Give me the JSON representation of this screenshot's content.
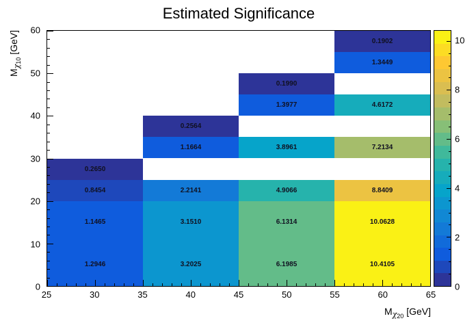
{
  "title": "Estimated Significance",
  "axes": {
    "x": {
      "title_prefix": "M",
      "title_sub_greek": "χ",
      "title_sub_num": "20",
      "title_suffix": " [GeV]",
      "min": 25,
      "max": 65,
      "ticks": [
        25,
        30,
        35,
        40,
        45,
        50,
        55,
        60,
        65
      ],
      "minor_step": 1
    },
    "y": {
      "title_prefix": "M",
      "title_sub_greek": "χ",
      "title_sub_num": "10",
      "title_suffix": " [GeV]",
      "min": 0,
      "max": 60,
      "ticks": [
        0,
        10,
        20,
        30,
        40,
        50,
        60
      ],
      "minor_step": 2
    },
    "z": {
      "min": 0,
      "max": 10.4105,
      "ticks": [
        0,
        2,
        4,
        6,
        8,
        10
      ],
      "minor_step": 0.5
    }
  },
  "chart_data": {
    "type": "heatmap",
    "title": "Estimated Significance",
    "xlabel": "M_chi20 [GeV]",
    "ylabel": "M_chi10 [GeV]",
    "xlim": [
      25,
      65
    ],
    "ylim": [
      0,
      60
    ],
    "zlim": [
      0,
      10.4105
    ],
    "x_bin_edges": [
      25,
      35,
      45,
      55,
      65
    ],
    "y_bin_edges": [
      0,
      10,
      20,
      25,
      30,
      35,
      40,
      45,
      50,
      55,
      60
    ],
    "cells": [
      {
        "x1": 25,
        "x2": 35,
        "y1": 0,
        "y2": 10,
        "value": 1.2946,
        "label": "1.2946",
        "color": "#0f5cdd"
      },
      {
        "x1": 25,
        "x2": 35,
        "y1": 10,
        "y2": 20,
        "value": 1.1465,
        "label": "1.1465",
        "color": "#0f5cdd"
      },
      {
        "x1": 25,
        "x2": 35,
        "y1": 20,
        "y2": 25,
        "value": 0.8454,
        "label": "0.8454",
        "color": "#1e48bb"
      },
      {
        "x1": 25,
        "x2": 35,
        "y1": 25,
        "y2": 30,
        "value": 0.265,
        "label": "0.2650",
        "color": "#2d3498"
      },
      {
        "x1": 35,
        "x2": 45,
        "y1": 0,
        "y2": 10,
        "value": 3.2025,
        "label": "3.2025",
        "color": "#0c96cf"
      },
      {
        "x1": 35,
        "x2": 45,
        "y1": 10,
        "y2": 20,
        "value": 3.151,
        "label": "3.1510",
        "color": "#0c96cf"
      },
      {
        "x1": 35,
        "x2": 45,
        "y1": 20,
        "y2": 25,
        "value": 2.2141,
        "label": "2.2141",
        "color": "#137ad7"
      },
      {
        "x1": 35,
        "x2": 45,
        "y1": 30,
        "y2": 35,
        "value": 1.1664,
        "label": "1.1664",
        "color": "#0f5cdd"
      },
      {
        "x1": 35,
        "x2": 45,
        "y1": 35,
        "y2": 40,
        "value": 0.2564,
        "label": "0.2564",
        "color": "#2d3498"
      },
      {
        "x1": 45,
        "x2": 55,
        "y1": 0,
        "y2": 10,
        "value": 6.1985,
        "label": "6.1985",
        "color": "#63bc89"
      },
      {
        "x1": 45,
        "x2": 55,
        "y1": 10,
        "y2": 20,
        "value": 6.1314,
        "label": "6.1314",
        "color": "#63bc89"
      },
      {
        "x1": 45,
        "x2": 55,
        "y1": 20,
        "y2": 25,
        "value": 4.9066,
        "label": "4.9066",
        "color": "#26b3ac"
      },
      {
        "x1": 45,
        "x2": 55,
        "y1": 30,
        "y2": 35,
        "value": 3.8961,
        "label": "3.8961",
        "color": "#06a4ca"
      },
      {
        "x1": 45,
        "x2": 55,
        "y1": 40,
        "y2": 45,
        "value": 1.3977,
        "label": "1.3977",
        "color": "#0f5cdd"
      },
      {
        "x1": 45,
        "x2": 55,
        "y1": 45,
        "y2": 50,
        "value": 0.199,
        "label": "0.1990",
        "color": "#2d3498"
      },
      {
        "x1": 55,
        "x2": 65,
        "y1": 0,
        "y2": 10,
        "value": 10.4105,
        "label": "10.4105",
        "color": "#faf115"
      },
      {
        "x1": 55,
        "x2": 65,
        "y1": 10,
        "y2": 20,
        "value": 10.0628,
        "label": "10.0628",
        "color": "#faf115"
      },
      {
        "x1": 55,
        "x2": 65,
        "y1": 20,
        "y2": 25,
        "value": 8.8409,
        "label": "8.8409",
        "color": "#ecc342"
      },
      {
        "x1": 55,
        "x2": 65,
        "y1": 30,
        "y2": 35,
        "value": 7.2134,
        "label": "7.2134",
        "color": "#a5bd6b"
      },
      {
        "x1": 55,
        "x2": 65,
        "y1": 40,
        "y2": 45,
        "value": 4.6172,
        "label": "4.6172",
        "color": "#16acbb"
      },
      {
        "x1": 55,
        "x2": 65,
        "y1": 50,
        "y2": 55,
        "value": 1.3449,
        "label": "1.3449",
        "color": "#0f5cdd"
      },
      {
        "x1": 55,
        "x2": 65,
        "y1": 55,
        "y2": 60,
        "value": 0.1902,
        "label": "0.1902",
        "color": "#2d3498"
      }
    ],
    "palette_bands": [
      "#2d3498",
      "#1e48bb",
      "#0f5cdd",
      "#116bda",
      "#137ad7",
      "#1188d4",
      "#0c96cf",
      "#06a4ca",
      "#16acbb",
      "#26b3ac",
      "#40b99b",
      "#63bc89",
      "#87bf77",
      "#a5bd6b",
      "#c2bc5f",
      "#dabe51",
      "#ecc342",
      "#fec832",
      "#fcdc24",
      "#faf115"
    ],
    "legend_position": "right",
    "grid": false
  }
}
